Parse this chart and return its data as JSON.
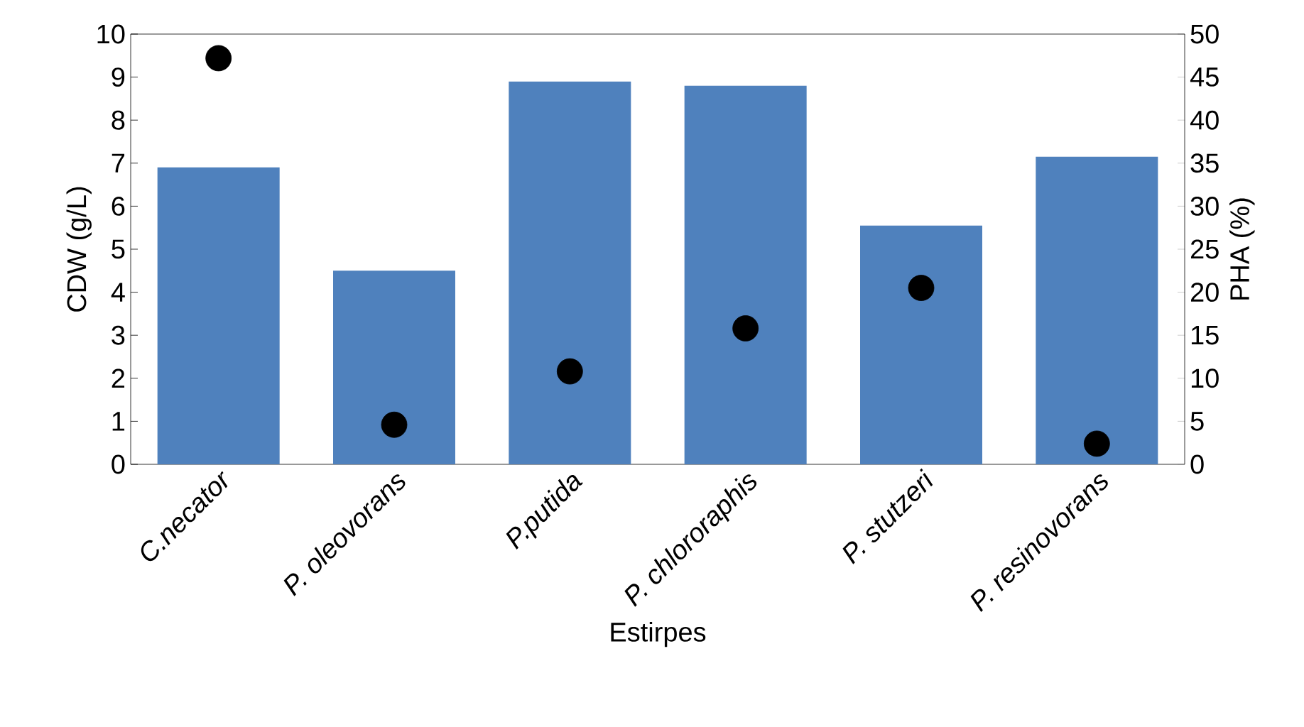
{
  "chart_data": {
    "type": "bar",
    "xlabel": "Estirpes",
    "ylabel": "CDW (g/L)",
    "y2label": "PHA (%)",
    "categories": [
      "C.necator",
      "P. oleovorans",
      "P.putida",
      "P. chlororaphis",
      "P. stutzeri",
      "P. resinovorans"
    ],
    "ylim": [
      0,
      10
    ],
    "yticks": [
      0,
      1,
      2,
      3,
      4,
      5,
      6,
      7,
      8,
      9,
      10
    ],
    "y2lim": [
      0,
      50
    ],
    "y2ticks": [
      0,
      5,
      10,
      15,
      20,
      25,
      30,
      35,
      40,
      45,
      50
    ],
    "series": [
      {
        "color": "#4f81bd",
        "values": [
          6.9,
          4.5,
          8.9,
          8.8,
          5.55,
          7.15
        ]
      },
      {
        "type": "scatter",
        "axis": "y2",
        "color": "#000000",
        "marker": "circle",
        "values": [
          47.2,
          4.6,
          10.8,
          15.8,
          20.5,
          2.4
        ]
      }
    ]
  }
}
